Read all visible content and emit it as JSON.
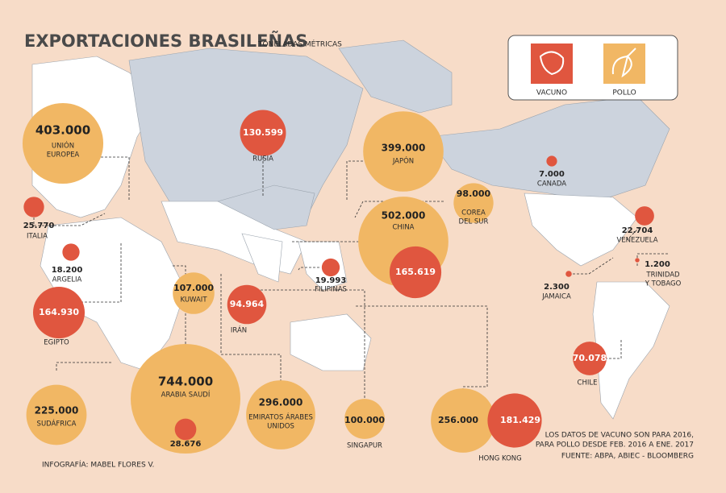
{
  "header": {
    "title": "EXPORTACIONES BRASILEÑAS",
    "subtitle": "TONELADAS MÉTRICAS"
  },
  "legend": {
    "beef": {
      "label": "VACUNO",
      "color": "#e0563f"
    },
    "chicken": {
      "label": "POLLO",
      "color": "#f1b764"
    }
  },
  "countries": [
    {
      "name": [
        "UNIÓN",
        "EUROPEA"
      ],
      "chicken": {
        "value": 403000,
        "label": "403.000"
      }
    },
    {
      "name": [
        "RUSIA"
      ],
      "beef": {
        "value": 130599,
        "label": "130.599"
      }
    },
    {
      "name": [
        "JAPÓN"
      ],
      "chicken": {
        "value": 399000,
        "label": "399.000"
      }
    },
    {
      "name": [
        "CANADA"
      ],
      "beef": {
        "value": 7000,
        "label": "7.000"
      }
    },
    {
      "name": [
        "ITALIA"
      ],
      "beef": {
        "value": 25770,
        "label": "25.770"
      }
    },
    {
      "name": [
        "COREA",
        "DEL SUR"
      ],
      "chicken": {
        "value": 98000,
        "label": "98.000"
      }
    },
    {
      "name": [
        "VENEZUELA"
      ],
      "beef": {
        "value": 22704,
        "label": "22.704"
      }
    },
    {
      "name": [
        "ARGELIA"
      ],
      "beef": {
        "value": 18200,
        "label": "18.200"
      }
    },
    {
      "name": [
        "CHINA"
      ],
      "chicken": {
        "value": 502000,
        "label": "502.000"
      },
      "beef": {
        "value": 165619,
        "label": "165.619"
      }
    },
    {
      "name": [
        "FILIPINAS"
      ],
      "beef": {
        "value": 19993,
        "label": "19.993"
      }
    },
    {
      "name": [
        "TRINIDAD",
        "Y TOBAGO"
      ],
      "beef": {
        "value": 1200,
        "label": "1.200"
      }
    },
    {
      "name": [
        "JAMAICA"
      ],
      "beef": {
        "value": 2300,
        "label": "2.300"
      }
    },
    {
      "name": [
        "KUWAIT"
      ],
      "chicken": {
        "value": 107000,
        "label": "107.000"
      }
    },
    {
      "name": [
        "IRÁN"
      ],
      "beef": {
        "value": 94964,
        "label": "94.964"
      }
    },
    {
      "name": [
        "EGIPTO"
      ],
      "beef": {
        "value": 164930,
        "label": "164.930"
      }
    },
    {
      "name": [
        "CHILE"
      ],
      "beef": {
        "value": 70078,
        "label": "70.078"
      }
    },
    {
      "name": [
        "SUDÁFRICA"
      ],
      "chicken": {
        "value": 225000,
        "label": "225.000"
      }
    },
    {
      "name": [
        "ARABIA SAUDÍ"
      ],
      "chicken": {
        "value": 744000,
        "label": "744.000"
      },
      "beef": {
        "value": 28676,
        "label": "28.676"
      }
    },
    {
      "name": [
        "EMIRATOS ÁRABES",
        "UNIDOS"
      ],
      "chicken": {
        "value": 296000,
        "label": "296.000"
      }
    },
    {
      "name": [
        "SINGAPUR"
      ],
      "chicken": {
        "value": 100000,
        "label": "100.000"
      }
    },
    {
      "name": [
        "HONG KONG"
      ],
      "chicken": {
        "value": 256000,
        "label": "256.000"
      },
      "beef": {
        "value": 181429,
        "label": "181.429"
      }
    }
  ],
  "notes": [
    "LOS DATOS DE VACUNO SON PARA 2016,",
    "PARA POLLO DESDE FEB. 2016 A ENE. 2017",
    "FUENTE: ABPA, ABIEC - BLOOMBERG"
  ],
  "credit": "INFOGRAFÍA: MABEL FLORES V."
}
